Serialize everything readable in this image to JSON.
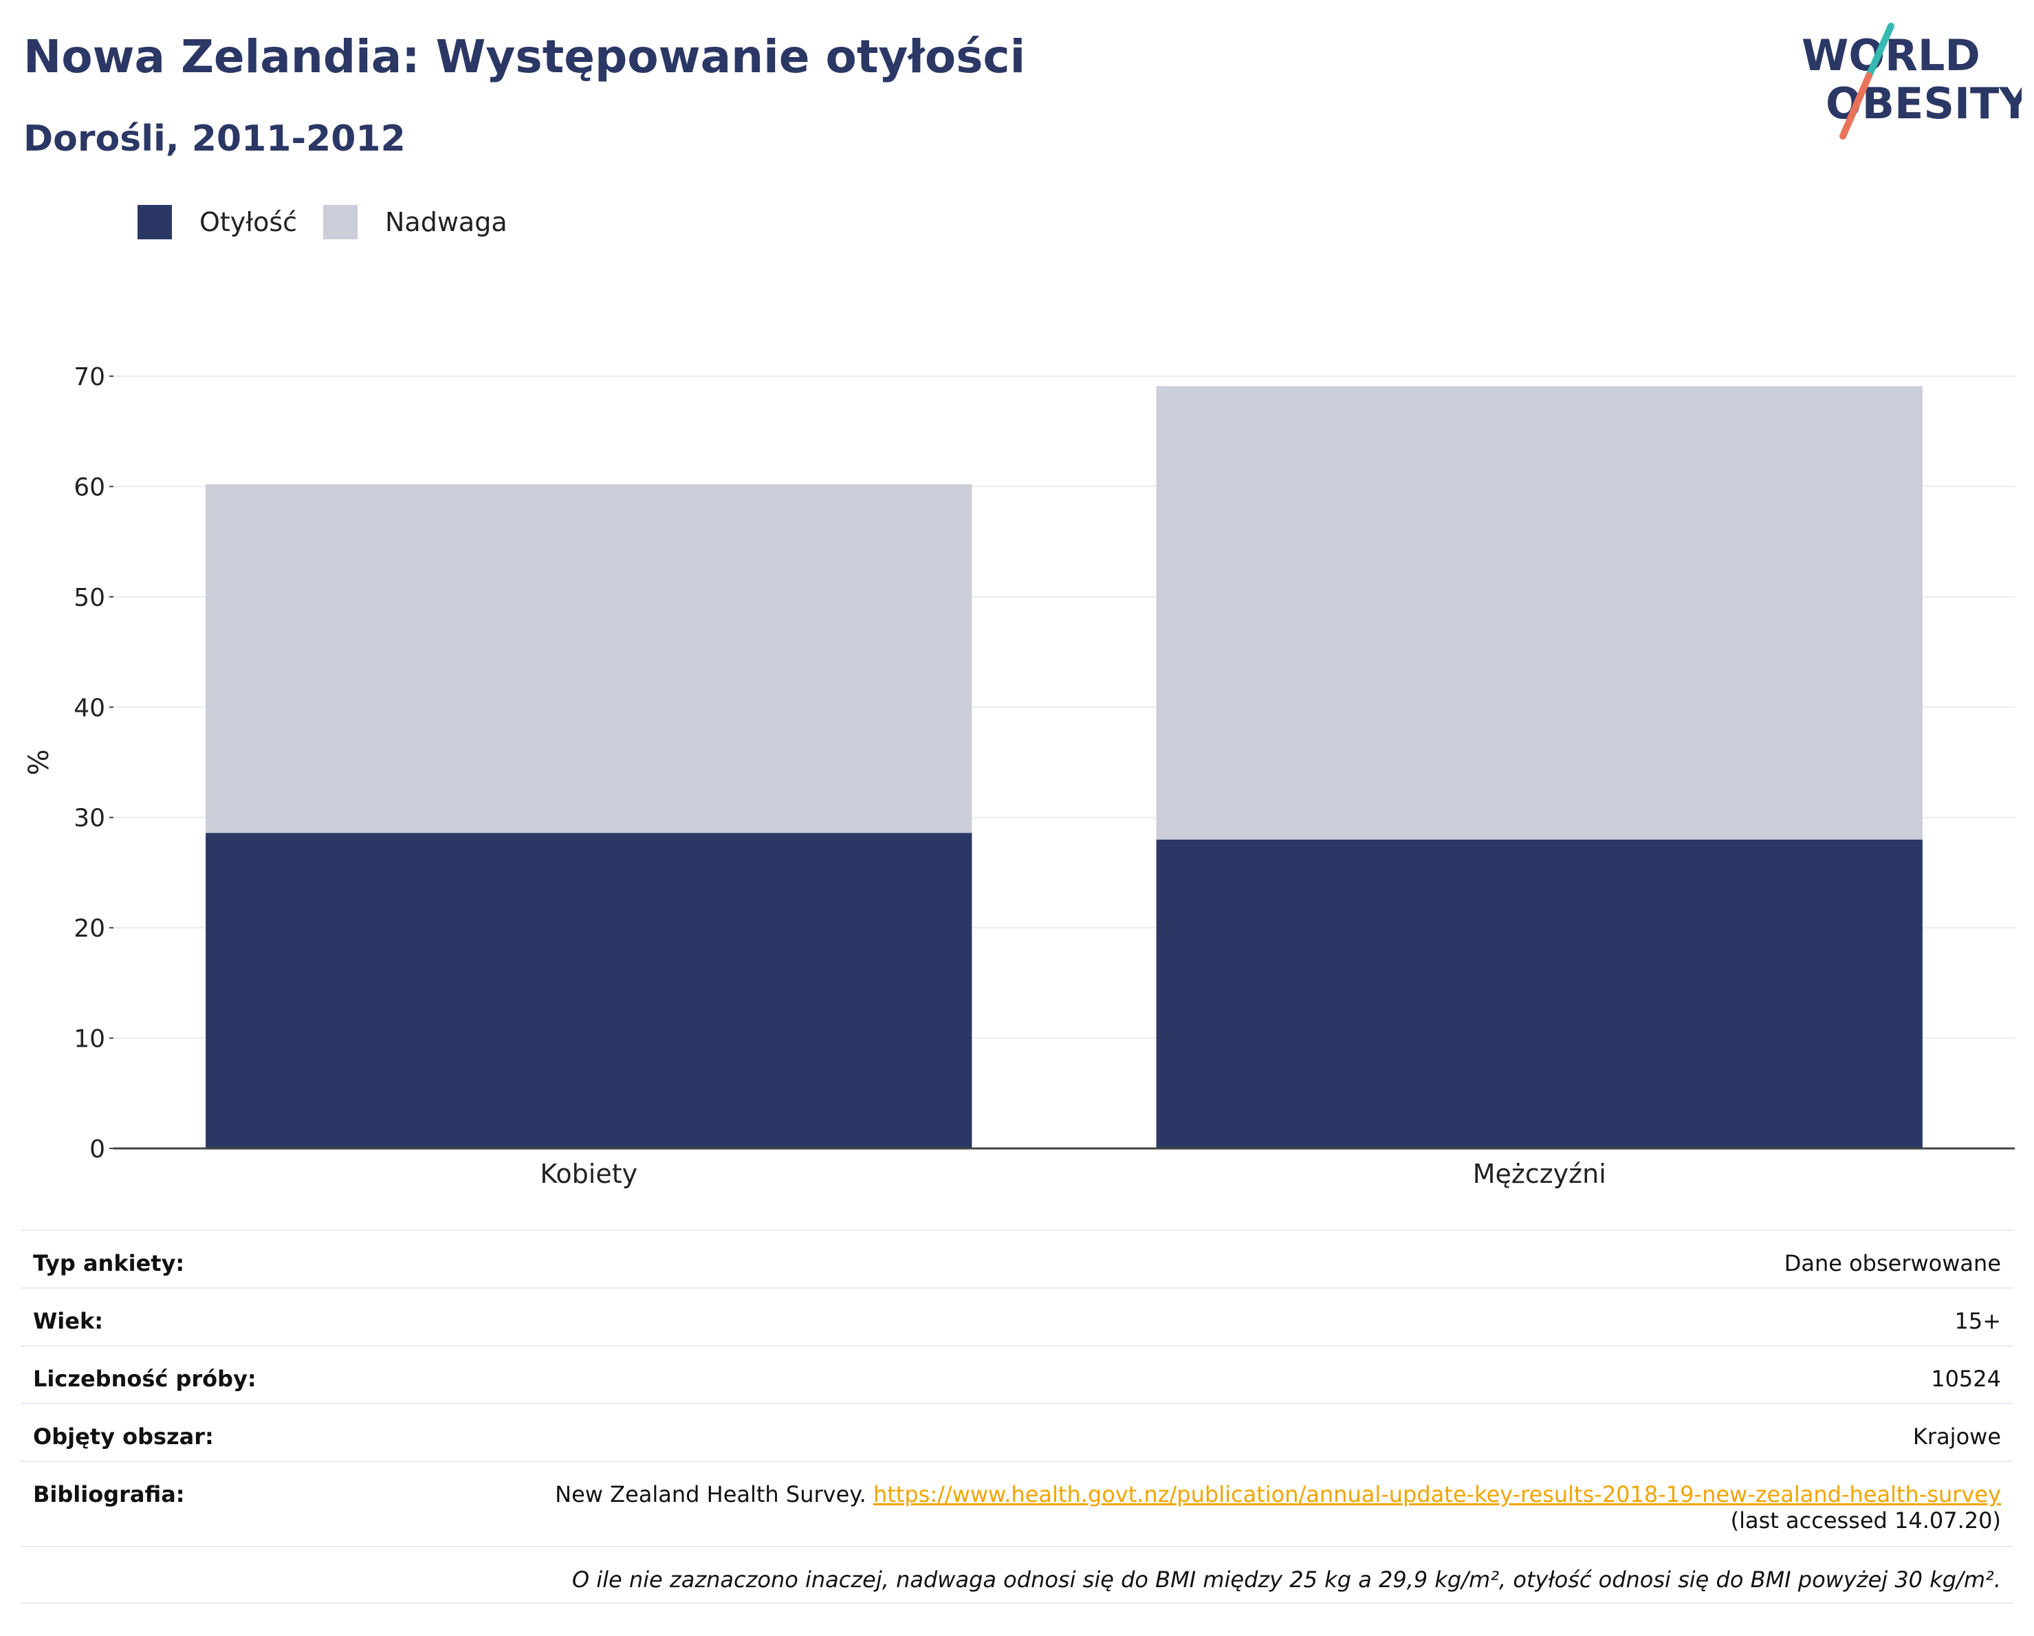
{
  "header": {
    "title": "Nowa Zelandia: Występowanie otyłości",
    "subtitle": "Dorośli, 2011-2012"
  },
  "logo": {
    "line1": "WORLD",
    "line2": "OBESITY",
    "accent_colors": [
      "#37b8b0",
      "#e8735a"
    ]
  },
  "legend": [
    {
      "label": "Otyłość",
      "color": "#2b3764"
    },
    {
      "label": "Nadwaga",
      "color": "#cbcdd8"
    }
  ],
  "chart_data": {
    "type": "bar",
    "stacked": true,
    "categories": [
      "Kobiety",
      "Mężczyźni"
    ],
    "series": [
      {
        "name": "Otyłość",
        "values": [
          28.6,
          28.0
        ],
        "color": "#2b3764"
      },
      {
        "name": "Nadwaga",
        "values": [
          31.6,
          41.1
        ],
        "color": "#cbcdd8"
      }
    ],
    "ylabel": "%",
    "ylim": [
      0,
      70
    ],
    "yticks": [
      0,
      10,
      20,
      30,
      40,
      50,
      60,
      70
    ],
    "grid": true
  },
  "meta": {
    "rows": [
      {
        "key": "Typ ankiety:",
        "value": "Dane obserwowane"
      },
      {
        "key": "Wiek:",
        "value": "15+"
      },
      {
        "key": "Liczebność próby:",
        "value": "10524"
      },
      {
        "key": "Objęty obszar:",
        "value": "Krajowe"
      }
    ],
    "bibliography": {
      "key": "Bibliografia:",
      "source": "New Zealand Health Survey. ",
      "link": "https://www.health.govt.nz/publication/annual-update-key-results-2018-19-new-zealand-health-survey",
      "accessed": "(last accessed 14.07.20)"
    },
    "footnote": "O ile nie zaznaczono inaczej, nadwaga odnosi się do BMI między 25 kg a 29,9 kg/m², otyłość odnosi się do BMI powyżej 30 kg/m²."
  }
}
